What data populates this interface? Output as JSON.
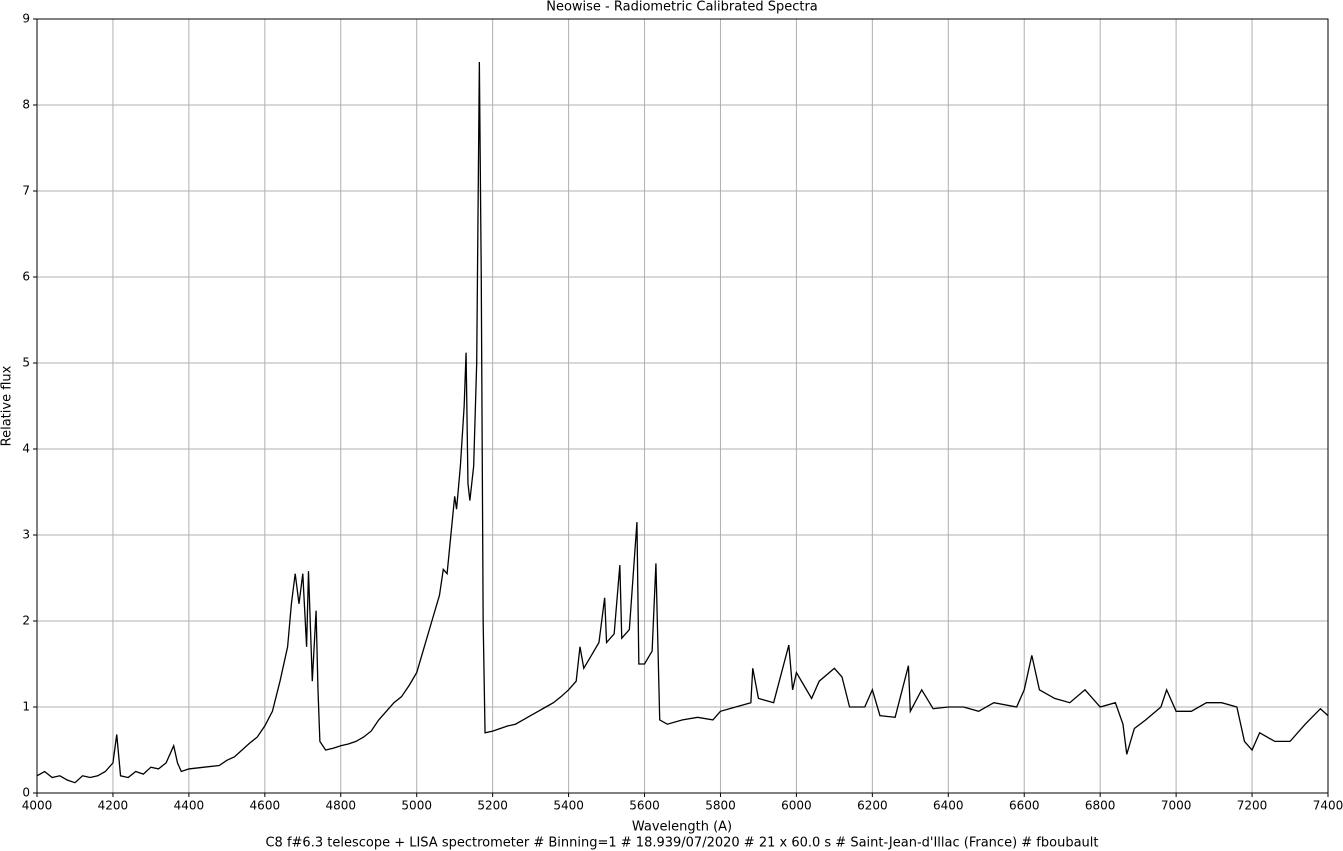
{
  "chart_data": {
    "type": "line",
    "title": "Neowise - Radiometric Calibrated Spectra",
    "xlabel": "Wavelength (A)",
    "ylabel": "Relative flux",
    "note": "C8 f#6.3 telescope + LISA spectrometer # Binning=1 # 18.939/07/2020 # 21 x 60.0 s # Saint-Jean-d'Illac (France) # fboubault",
    "xlim": [
      4000,
      7400
    ],
    "ylim": [
      0,
      9
    ],
    "xticks": [
      4000,
      4200,
      4400,
      4600,
      4800,
      5000,
      5200,
      5400,
      5600,
      5800,
      6000,
      6200,
      6400,
      6600,
      6800,
      7000,
      7200,
      7400
    ],
    "yticks": [
      0,
      1,
      2,
      3,
      4,
      5,
      6,
      7,
      8,
      9
    ],
    "grid": true,
    "series": [
      {
        "color": "#000000",
        "x": [
          4000,
          4020,
          4040,
          4060,
          4080,
          4100,
          4120,
          4140,
          4160,
          4180,
          4200,
          4210,
          4220,
          4240,
          4260,
          4280,
          4300,
          4320,
          4340,
          4360,
          4370,
          4380,
          4400,
          4440,
          4480,
          4500,
          4520,
          4540,
          4560,
          4580,
          4600,
          4620,
          4640,
          4660,
          4670,
          4680,
          4690,
          4700,
          4710,
          4715,
          4725,
          4735,
          4740,
          4745,
          4760,
          4780,
          4800,
          4820,
          4840,
          4860,
          4880,
          4900,
          4920,
          4940,
          4960,
          4980,
          5000,
          5020,
          5040,
          5060,
          5070,
          5080,
          5090,
          5100,
          5105,
          5115,
          5125,
          5130,
          5135,
          5140,
          5150,
          5158,
          5165,
          5170,
          5175,
          5180,
          5200,
          5220,
          5240,
          5260,
          5280,
          5300,
          5320,
          5340,
          5360,
          5380,
          5400,
          5420,
          5430,
          5440,
          5460,
          5480,
          5495,
          5500,
          5520,
          5535,
          5540,
          5560,
          5580,
          5585,
          5600,
          5620,
          5630,
          5640,
          5660,
          5700,
          5740,
          5780,
          5800,
          5840,
          5880,
          5885,
          5900,
          5940,
          5980,
          5990,
          6000,
          6020,
          6040,
          6060,
          6100,
          6120,
          6140,
          6180,
          6200,
          6220,
          6260,
          6295,
          6300,
          6330,
          6360,
          6400,
          6440,
          6480,
          6520,
          6580,
          6600,
          6620,
          6640,
          6680,
          6720,
          6760,
          6800,
          6840,
          6860,
          6870,
          6890,
          6920,
          6960,
          6975,
          7000,
          7040,
          7080,
          7120,
          7160,
          7180,
          7200,
          7220,
          7260,
          7300,
          7340,
          7380,
          7400
        ],
        "values": [
          0.2,
          0.25,
          0.18,
          0.2,
          0.15,
          0.12,
          0.2,
          0.18,
          0.2,
          0.25,
          0.35,
          0.68,
          0.2,
          0.18,
          0.25,
          0.22,
          0.3,
          0.28,
          0.35,
          0.55,
          0.35,
          0.25,
          0.28,
          0.3,
          0.32,
          0.38,
          0.42,
          0.5,
          0.58,
          0.65,
          0.78,
          0.95,
          1.3,
          1.7,
          2.2,
          2.55,
          2.2,
          2.55,
          1.7,
          2.58,
          1.3,
          2.12,
          1.2,
          0.6,
          0.5,
          0.52,
          0.55,
          0.57,
          0.6,
          0.65,
          0.72,
          0.85,
          0.95,
          1.05,
          1.12,
          1.25,
          1.4,
          1.7,
          2.0,
          2.3,
          2.6,
          2.55,
          3.0,
          3.45,
          3.3,
          3.8,
          4.5,
          5.12,
          3.6,
          3.4,
          3.8,
          5.0,
          8.5,
          6,
          2.0,
          0.7,
          0.72,
          0.75,
          0.78,
          0.8,
          0.85,
          0.9,
          0.95,
          1.0,
          1.05,
          1.12,
          1.2,
          1.3,
          1.7,
          1.45,
          1.6,
          1.75,
          2.27,
          1.75,
          1.85,
          2.65,
          1.8,
          1.9,
          3.15,
          1.5,
          1.5,
          1.65,
          2.67,
          0.85,
          0.8,
          0.85,
          0.88,
          0.85,
          0.95,
          1.0,
          1.05,
          1.45,
          1.1,
          1.05,
          1.72,
          1.2,
          1.4,
          1.25,
          1.1,
          1.3,
          1.45,
          1.35,
          1.0,
          1.0,
          1.2,
          0.9,
          0.88,
          1.48,
          0.95,
          1.2,
          0.98,
          1.0,
          1.0,
          0.95,
          1.05,
          1.0,
          1.2,
          1.6,
          1.2,
          1.1,
          1.05,
          1.2,
          1.0,
          1.05,
          0.8,
          0.45,
          0.75,
          0.85,
          1.0,
          1.2,
          0.95,
          0.95,
          1.05,
          1.05,
          1.0,
          0.6,
          0.5,
          0.7,
          0.6,
          0.6,
          0.8,
          0.98,
          0.9
        ]
      }
    ]
  }
}
